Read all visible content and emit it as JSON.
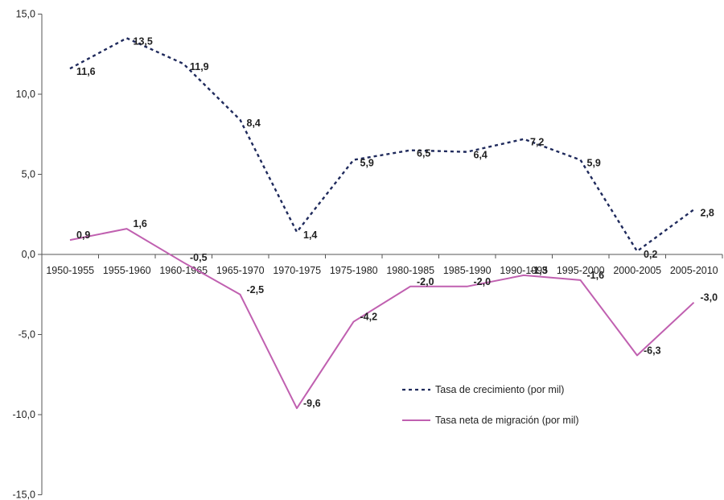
{
  "chart_data": {
    "type": "line",
    "categories": [
      "1950-1955",
      "1955-1960",
      "1960-1965",
      "1965-1970",
      "1970-1975",
      "1975-1980",
      "1980-1985",
      "1985-1990",
      "1990-1995",
      "1995-2000",
      "2000-2005",
      "2005-2010"
    ],
    "series": [
      {
        "name": "Tasa de crecimiento (por mil)",
        "values": [
          11.6,
          13.5,
          11.9,
          8.4,
          1.4,
          5.9,
          6.5,
          6.4,
          7.2,
          5.9,
          0.2,
          2.8
        ],
        "labels": [
          "11,6",
          "13,5",
          "11,9",
          "8,4",
          "1,4",
          "5,9",
          "6,5",
          "6,4",
          "7,2",
          "5,9",
          "0,2",
          "2,8"
        ],
        "color": "#1f2a5c",
        "style": "dashed"
      },
      {
        "name": "Tasa neta de migración (por mil)",
        "values": [
          0.9,
          1.6,
          -0.5,
          -2.5,
          -9.6,
          -4.2,
          -2.0,
          -2.0,
          -1.3,
          -1.6,
          -6.3,
          -3.0
        ],
        "labels": [
          "0,9",
          "1,6",
          "-0,5",
          "-2,5",
          "-9,6",
          "-4,2",
          "-2,0",
          "-2,0",
          "-1,3",
          "-1,6",
          "-6,3",
          "-3,0"
        ],
        "color": "#c060b0",
        "style": "solid"
      }
    ],
    "yticks": [
      15,
      10,
      5,
      0,
      -5,
      -10,
      -15
    ],
    "ytick_labels": [
      "15,0",
      "10,0",
      "5,0",
      "0,0",
      "-5,0",
      "-10,0",
      "-15,0"
    ],
    "ylim": [
      -15,
      15
    ],
    "grid": false,
    "legend_position": "lower-right"
  }
}
